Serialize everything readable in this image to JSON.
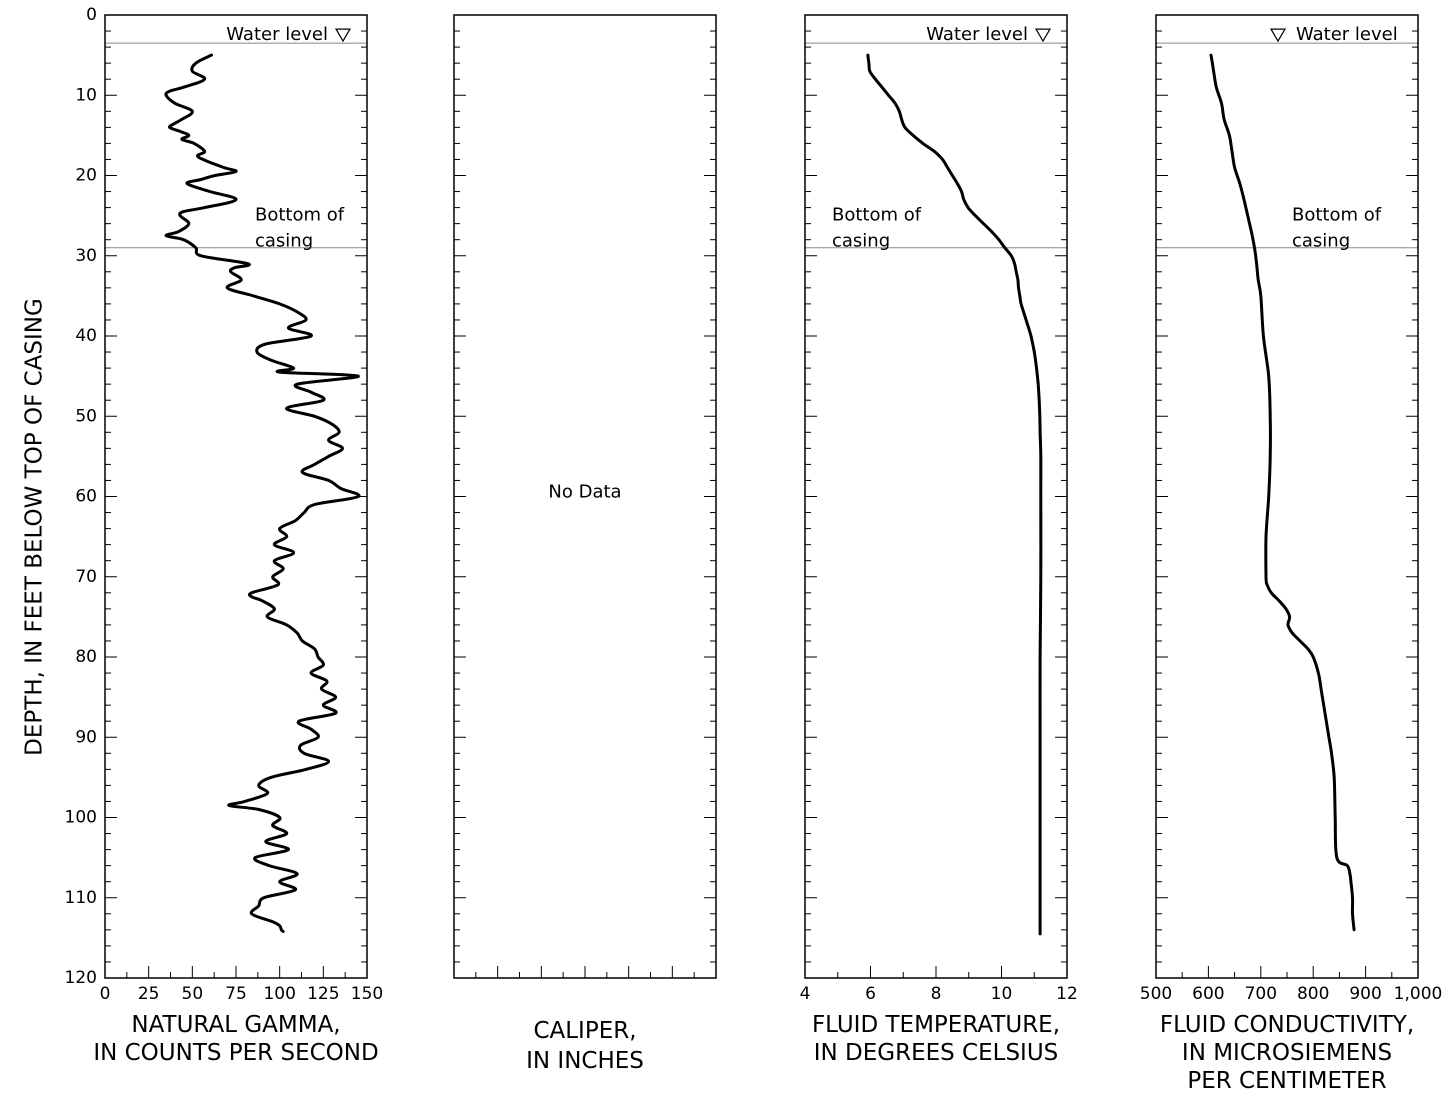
{
  "chart_data": {
    "type": "line",
    "shared_y": {
      "label": "DEPTH, IN FEET BELOW TOP OF CASING",
      "range": [
        0,
        120
      ],
      "inverted": true,
      "ticks": [
        0,
        10,
        20,
        30,
        40,
        50,
        60,
        70,
        80,
        90,
        100,
        110,
        120
      ]
    },
    "annotations": {
      "water_level": {
        "depth": 3.5,
        "label": "Water level"
      },
      "bottom_of_casing": {
        "depth": 29,
        "label_line1": "Bottom of",
        "label_line2": "casing"
      },
      "no_data": "No Data"
    },
    "panels": [
      {
        "id": "gamma",
        "xlabel_line1": "NATURAL GAMMA,",
        "xlabel_line2": "IN COUNTS PER SECOND",
        "xlim": [
          0,
          150
        ],
        "xticks": [
          "0",
          "25",
          "50",
          "75",
          "100",
          "125",
          "150"
        ],
        "series": [
          {
            "depth": [
              5,
              6,
              7,
              8,
              9,
              9.5,
              10,
              11,
              12,
              13,
              13.5,
              14,
              14.5,
              15,
              15.5,
              16,
              17,
              17.5,
              18,
              19,
              19.5,
              20,
              20.5,
              21,
              22,
              23,
              24,
              24.5,
              25,
              26,
              27,
              27.5,
              28,
              29,
              30,
              31,
              31.5,
              32,
              33,
              34,
              35,
              36,
              37,
              38,
              39,
              40,
              41,
              42,
              43,
              44,
              44.5,
              45,
              46,
              47,
              48,
              49,
              50,
              51,
              52,
              53,
              54,
              55,
              56,
              57,
              58,
              59,
              60,
              61,
              62,
              63,
              64,
              65,
              66,
              67,
              68,
              69,
              70,
              71,
              72,
              72.5,
              73,
              74,
              75,
              76,
              77,
              78,
              79,
              80,
              81,
              82,
              83,
              84,
              85,
              86,
              87,
              88,
              89,
              90,
              91,
              92,
              93,
              94,
              95,
              96,
              97,
              98,
              98.5,
              99,
              100,
              101,
              102,
              103,
              104,
              105,
              106,
              107,
              108,
              109,
              110,
              111,
              112,
              113,
              113.5,
              114,
              114.2
            ],
            "values": [
              61,
              52,
              50,
              57,
              45,
              37,
              35,
              40,
              50,
              44,
              40,
              37,
              43,
              48,
              44,
              51,
              57,
              53,
              56,
              68,
              75,
              63,
              55,
              47,
              60,
              75,
              57,
              45,
              43,
              48,
              42,
              35,
              45,
              52,
              55,
              82,
              74,
              72,
              78,
              70,
              85,
              100,
              110,
              115,
              105,
              118,
              92,
              87,
              95,
              108,
              100,
              145,
              110,
              118,
              125,
              104,
              120,
              130,
              134,
              128,
              136,
              128,
              120,
              113,
              128,
              135,
              145,
              120,
              114,
              109,
              100,
              104,
              97,
              108,
              97,
              102,
              96,
              99,
              84,
              84,
              90,
              97,
              93,
              104,
              110,
              113,
              120,
              122,
              125,
              118,
              127,
              124,
              132,
              125,
              132,
              111,
              118,
              122,
              112,
              114,
              128,
              115,
              95,
              88,
              93,
              80,
              71,
              88,
              100,
              96,
              104,
              92,
              105,
              86,
              94,
              110,
              100,
              109,
              91,
              88,
              84,
              96,
              100,
              101,
              102
            ]
          }
        ]
      },
      {
        "id": "caliper",
        "xlabel_line1": "CALIPER,",
        "xlabel_line2": "IN INCHES",
        "xlim": [
          0,
          12
        ],
        "xticks": [],
        "series": []
      },
      {
        "id": "temperature",
        "xlabel_line1": "FLUID TEMPERATURE,",
        "xlabel_line2": "IN DEGREES CELSIUS",
        "xlim": [
          4,
          12
        ],
        "xticks": [
          "4",
          "6",
          "8",
          "10",
          "12"
        ],
        "series": [
          {
            "depth": [
              5,
              6,
              7,
              8,
              9,
              10,
              11,
              12,
              13,
              14,
              15,
              16,
              17,
              18,
              19,
              20,
              21,
              22,
              23,
              24,
              25,
              26,
              27,
              28,
              29,
              30,
              31,
              32,
              33,
              34,
              35,
              36,
              38,
              40,
              42,
              44,
              46,
              48,
              50,
              52,
              55,
              60,
              70,
              80,
              90,
              100,
              110,
              114.5
            ],
            "values": [
              5.92,
              5.95,
              5.98,
              6.15,
              6.35,
              6.55,
              6.75,
              6.88,
              6.95,
              7.05,
              7.3,
              7.6,
              7.95,
              8.2,
              8.35,
              8.5,
              8.65,
              8.78,
              8.85,
              8.98,
              9.2,
              9.45,
              9.7,
              9.92,
              10.1,
              10.3,
              10.4,
              10.45,
              10.5,
              10.52,
              10.56,
              10.6,
              10.75,
              10.9,
              11.0,
              11.07,
              11.12,
              11.15,
              11.17,
              11.18,
              11.2,
              11.2,
              11.2,
              11.18,
              11.18,
              11.18,
              11.18,
              11.18
            ]
          }
        ]
      },
      {
        "id": "conductivity",
        "xlabel_line1": "FLUID CONDUCTIVITY,",
        "xlabel_line2": "IN MICROSIEMENS",
        "xlabel_line3": "PER CENTIMETER",
        "xlim": [
          500,
          1000
        ],
        "xticks": [
          "500",
          "600",
          "700",
          "800",
          "900",
          "1,000"
        ],
        "series": [
          {
            "depth": [
              5,
              7,
              9,
              11,
              13,
              15,
              17,
              19,
              21,
              23,
              25,
              27,
              29,
              31,
              33,
              35,
              40,
              45,
              50,
              55,
              60,
              65,
              70,
              71,
              72,
              73,
              74,
              75,
              76,
              77,
              78,
              79,
              80,
              82,
              84,
              86,
              88,
              90,
              92,
              95,
              100,
              105,
              106,
              107,
              108,
              110,
              112,
              114
            ],
            "values": [
              605,
              610,
              615,
              625,
              630,
              640,
              645,
              650,
              660,
              668,
              675,
              682,
              688,
              692,
              695,
              700,
              705,
              715,
              718,
              718,
              715,
              710,
              710,
              712,
              720,
              735,
              748,
              755,
              752,
              760,
              775,
              790,
              800,
              810,
              815,
              820,
              825,
              830,
              835,
              840,
              842,
              845,
              865,
              870,
              872,
              875,
              875,
              878
            ]
          }
        ]
      }
    ]
  }
}
